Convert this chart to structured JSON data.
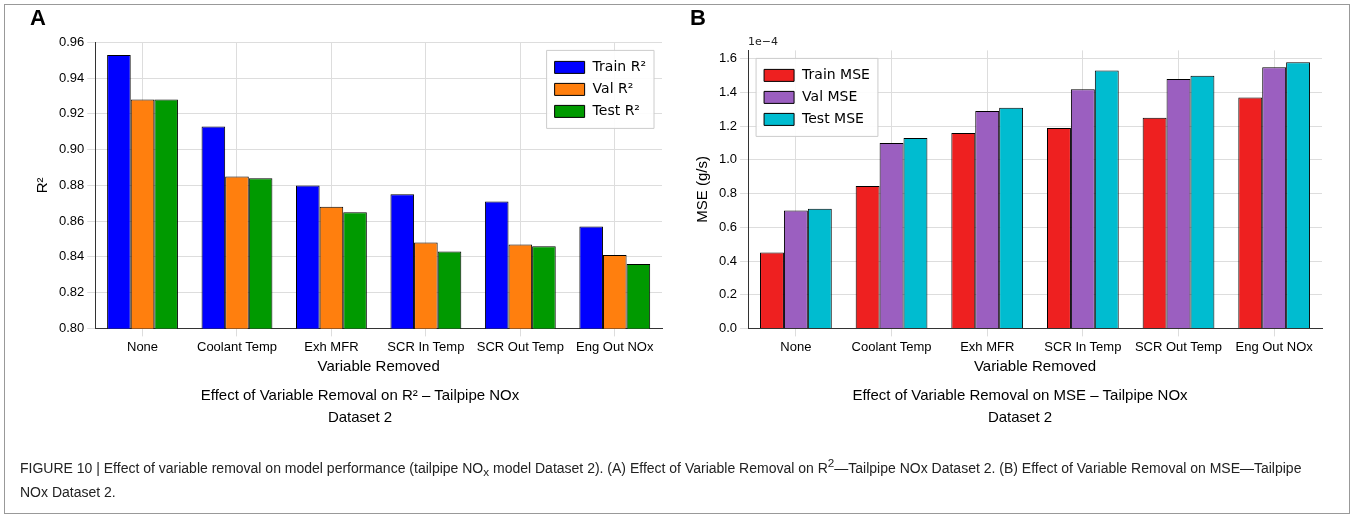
{
  "chart_data": [
    {
      "type": "bar",
      "title": "A",
      "xlabel": "Variable Removed",
      "ylabel": "R²",
      "categories": [
        "None",
        "Coolant Temp",
        "Exh MFR",
        "SCR In Temp",
        "SCR Out Temp",
        "Eng Out NOx"
      ],
      "series": [
        {
          "name": "Train R²",
          "color": "#0000ff",
          "values": [
            0.953,
            0.913,
            0.88,
            0.875,
            0.871,
            0.857
          ]
        },
        {
          "name": "Val R²",
          "color": "#ff7f0e",
          "values": [
            0.928,
            0.885,
            0.868,
            0.848,
            0.847,
            0.841
          ]
        },
        {
          "name": "Test R²",
          "color": "#009a00",
          "values": [
            0.928,
            0.884,
            0.865,
            0.843,
            0.846,
            0.836
          ]
        }
      ],
      "ylim": [
        0.8,
        0.96
      ],
      "yticks": [
        {
          "value": 0.8,
          "label": "0.80"
        },
        0.82,
        0.84,
        0.86,
        0.88,
        {
          "value": 0.9,
          "label": "0.90"
        },
        0.92,
        0.94,
        0.96
      ],
      "grid": true,
      "legend": "top right",
      "annotations": [
        "Effect of Variable Removal on R² – Tailpipe NOx\nDataset 2",
        "FIGURE 10 | Effect of variable removal on model performance (tailpipe NO$_{x}$ model Dataset 2). (A) Effect of Variable Removal on R$^{2}$—Tailpipe NOx Dataset 2. (B) Effect of Variable Removal on MSE—Tailpipe NOx Dataset 2."
      ]
    },
    {
      "type": "bar",
      "title": "B",
      "xlabel": "Variable Removed",
      "ylabel": "MSE (g/s)",
      "categories": [
        "None",
        "Coolant Temp",
        "Exh MFR",
        "SCR In Temp",
        "SCR Out Temp",
        "Eng Out NOx"
      ],
      "series": [
        {
          "name": "Train MSE",
          "color": "#ee2020",
          "values": [
            0.45,
            0.845,
            1.16,
            1.19,
            1.25,
            1.37
          ]
        },
        {
          "name": "Val MSE",
          "color": "#9b5fc0",
          "values": [
            0.7,
            1.1,
            1.29,
            1.42,
            1.48,
            1.55
          ]
        },
        {
          "name": "Test MSE",
          "color": "#00bcd0",
          "values": [
            0.71,
            1.13,
            1.31,
            1.53,
            1.5,
            1.58
          ]
        }
      ],
      "ylim": [
        0,
        1.65
      ],
      "yticks": [
        {
          "value": 0,
          "label": "0.0"
        },
        0.2,
        0.4,
        0.6,
        0.8,
        {
          "value": 1,
          "label": "1.0"
        },
        1.2,
        1.4,
        1.6
      ],
      "grid": true,
      "legend": "top left",
      "annotations": [
        "Effect of Variable Removal on MSE – Tailpipe NOx\nDataset 2",
        "1e−4"
      ]
    }
  ]
}
